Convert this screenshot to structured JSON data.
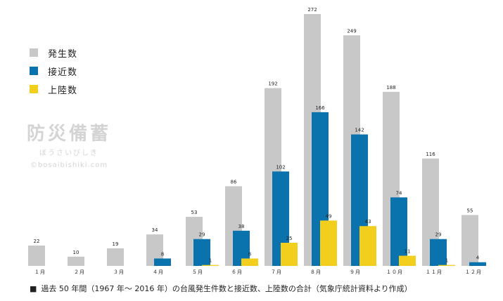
{
  "chart_data": {
    "type": "bar",
    "categories": [
      "１月",
      "２月",
      "３月",
      "４月",
      "５月",
      "６月",
      "７月",
      "８月",
      "９月",
      "１０月",
      "１１月",
      "１２月"
    ],
    "series": [
      {
        "name": "発生数",
        "color": "#c8c8c8",
        "values": [
          22,
          10,
          19,
          34,
          53,
          86,
          192,
          272,
          249,
          188,
          116,
          55
        ]
      },
      {
        "name": "接近数",
        "color": "#0a72ac",
        "values": [
          null,
          null,
          null,
          8,
          29,
          38,
          102,
          166,
          142,
          74,
          29,
          4
        ]
      },
      {
        "name": "上陸数",
        "color": "#f2ce1d",
        "values": [
          null,
          null,
          null,
          null,
          1,
          8,
          25,
          49,
          43,
          11,
          1,
          null
        ]
      }
    ],
    "ylim": [
      0,
      272
    ],
    "grid": false,
    "legend_position": "top-left"
  },
  "watermark": {
    "title": "防災備蓄",
    "subtitle": "ぼうさいびしき",
    "url": "©bosaibishiki.com"
  },
  "footnote": {
    "mark": "■",
    "text": "過去 50 年間（1967 年〜 2016 年）の台風発生件数と接近数、上陸数の合計（気象庁統計資料より作成）"
  }
}
